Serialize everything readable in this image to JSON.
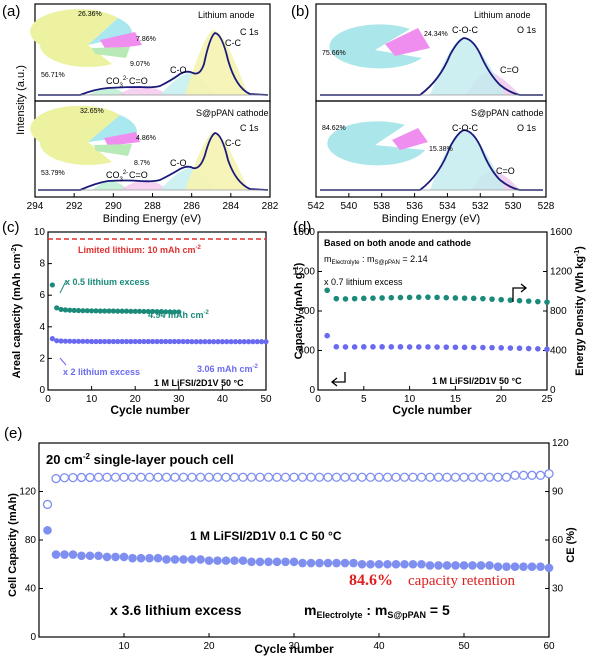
{
  "chart_data": [
    {
      "panel": "(a)",
      "type": "area",
      "xlabel": "Binding Energy (eV)",
      "ylabel": "Intensity (a.u.)",
      "xlim": [
        294,
        282
      ],
      "xticks": [
        294,
        292,
        290,
        288,
        286,
        284,
        282
      ],
      "subplots": [
        {
          "sample": "Lithium anode",
          "element": "C 1s",
          "peaks": [
            {
              "label": "C-C",
              "x": 284.8
            },
            {
              "label": "C-O",
              "x": 286.4
            },
            {
              "label": "C=O",
              "x": 288.6
            },
            {
              "label": "CO3 2-",
              "x": 289.9
            }
          ],
          "pie_values": [
            "56.71%",
            "26.36%",
            "7.86%",
            "9.07%"
          ]
        },
        {
          "sample": "S@pPAN cathode",
          "element": "C 1s",
          "peaks": [
            {
              "label": "C-C",
              "x": 284.8
            },
            {
              "label": "C-O",
              "x": 286.4
            },
            {
              "label": "C=O",
              "x": 288.6
            },
            {
              "label": "CO3 2-",
              "x": 289.9
            }
          ],
          "pie_values": [
            "53.79%",
            "32.65%",
            "4.86%",
            "8.7%"
          ]
        }
      ]
    },
    {
      "panel": "(b)",
      "type": "area",
      "xlabel": "Binding Energy (eV)",
      "xlim": [
        542,
        528
      ],
      "xticks": [
        542,
        540,
        538,
        536,
        534,
        532,
        530,
        528
      ],
      "subplots": [
        {
          "sample": "Lithium anode",
          "element": "O 1s",
          "peaks": [
            {
              "label": "C-O-C",
              "x": 533.1
            },
            {
              "label": "C=O",
              "x": 531.8
            }
          ],
          "pie_values": [
            "75.66%",
            "24.34%"
          ]
        },
        {
          "sample": "S@pPAN cathode",
          "element": "O 1s",
          "peaks": [
            {
              "label": "C-O-C",
              "x": 533.1
            },
            {
              "label": "C=O",
              "x": 531.8
            }
          ],
          "pie_values": [
            "84.62%",
            "15.38%"
          ]
        }
      ]
    },
    {
      "panel": "(c)",
      "type": "scatter",
      "xlabel": "Cycle number",
      "ylabel": "Areal capacity (mAh cm-2)",
      "xlim": [
        0,
        50
      ],
      "ylim": [
        0,
        10
      ],
      "xticks": [
        0,
        10,
        20,
        30,
        40,
        50
      ],
      "yticks": [
        0,
        2,
        4,
        6,
        8,
        10
      ],
      "reference_line": {
        "y": 10,
        "label": "Limited lithium: 10 mAh cm-2"
      },
      "series": [
        {
          "name": "x 0.5 lithium excess",
          "color": "#1a8a7a",
          "x": [
            1,
            2,
            3,
            4,
            5,
            6,
            7,
            8,
            9,
            10,
            11,
            12,
            13,
            14,
            15,
            16,
            17,
            18,
            19,
            20,
            21,
            22,
            23,
            24,
            25,
            26,
            27,
            28,
            29,
            30
          ],
          "y": [
            6.65,
            5.2,
            5.1,
            5.07,
            5.05,
            5.04,
            5.03,
            5.02,
            5.02,
            5.01,
            5.01,
            5.0,
            5.0,
            5.0,
            5.0,
            4.99,
            4.99,
            4.99,
            4.98,
            4.98,
            4.98,
            4.97,
            4.97,
            4.97,
            4.96,
            4.96,
            4.95,
            4.95,
            4.94,
            4.94
          ]
        },
        {
          "name": "x 2 lithium excess",
          "color": "#6a6af0",
          "x": [
            1,
            2,
            3,
            4,
            5,
            6,
            7,
            8,
            9,
            10,
            11,
            12,
            13,
            14,
            15,
            16,
            17,
            18,
            19,
            20,
            21,
            22,
            23,
            24,
            25,
            26,
            27,
            28,
            29,
            30,
            31,
            32,
            33,
            34,
            35,
            36,
            37,
            38,
            39,
            40,
            41,
            42,
            43,
            44,
            45,
            46,
            47,
            48,
            49,
            50
          ],
          "y": [
            3.25,
            3.12,
            3.1,
            3.09,
            3.09,
            3.08,
            3.08,
            3.08,
            3.08,
            3.07,
            3.07,
            3.07,
            3.07,
            3.07,
            3.07,
            3.07,
            3.07,
            3.07,
            3.07,
            3.07,
            3.07,
            3.07,
            3.07,
            3.07,
            3.07,
            3.07,
            3.07,
            3.07,
            3.07,
            3.07,
            3.07,
            3.07,
            3.06,
            3.06,
            3.06,
            3.06,
            3.06,
            3.06,
            3.06,
            3.06,
            3.06,
            3.06,
            3.06,
            3.06,
            3.06,
            3.06,
            3.06,
            3.06,
            3.06,
            3.06
          ]
        }
      ],
      "annotations": [
        "4.94 mAh cm-2",
        "3.06 mAh cm-2",
        "1 M LiFSI/2D1V   50 °C"
      ]
    },
    {
      "panel": "(d)",
      "type": "scatter",
      "xlabel": "Cycle number",
      "ylabel": "Capacity (mAh g-1)",
      "y2label": "Energy Density (Wh kg-1)",
      "xlim": [
        0,
        25
      ],
      "ylim": [
        0,
        1600
      ],
      "y2lim": [
        0,
        1600
      ],
      "xticks": [
        0,
        5,
        10,
        15,
        20,
        25
      ],
      "yticks": [
        0,
        400,
        800,
        1200,
        1600
      ],
      "series": [
        {
          "name": "Energy density",
          "axis": "right",
          "color": "#1a8a7a",
          "x": [
            1,
            2,
            3,
            4,
            5,
            6,
            7,
            8,
            9,
            10,
            11,
            12,
            13,
            14,
            15,
            16,
            17,
            18,
            19,
            20,
            21,
            22,
            23,
            24,
            25
          ],
          "y": [
            1010,
            925,
            922,
            925,
            928,
            930,
            932,
            935,
            936,
            938,
            940,
            940,
            938,
            935,
            932,
            930,
            928,
            925,
            920,
            915,
            910,
            905,
            900,
            895,
            890
          ]
        },
        {
          "name": "Capacity",
          "axis": "left",
          "color": "#6a6af0",
          "x": [
            1,
            2,
            3,
            4,
            5,
            6,
            7,
            8,
            9,
            10,
            11,
            12,
            13,
            14,
            15,
            16,
            17,
            18,
            19,
            20,
            21,
            22,
            23,
            24,
            25
          ],
          "y": [
            550,
            438,
            436,
            436,
            437,
            437,
            437,
            437,
            437,
            436,
            436,
            436,
            435,
            434,
            433,
            432,
            431,
            430,
            429,
            427,
            425,
            423,
            420,
            417,
            413
          ]
        }
      ],
      "annotations": [
        "Based on both anode and cathode",
        "x 0.7 lithium excess",
        "1 M LiFSI/2D1V   50 °C"
      ]
    },
    {
      "panel": "(e)",
      "type": "scatter",
      "xlabel": "Cycle number",
      "ylabel": "Cell Capacity (mAh)",
      "y2label": "CE (%)",
      "xlim": [
        0,
        60
      ],
      "ylim": [
        0,
        160
      ],
      "y2lim": [
        0,
        120
      ],
      "xticks": [
        10,
        20,
        30,
        40,
        50,
        60
      ],
      "yticks": [
        0,
        40,
        80,
        120
      ],
      "y2ticks": [
        30,
        60,
        90,
        120
      ],
      "series": [
        {
          "name": "CE",
          "axis": "right",
          "color": "#7f8ff0",
          "x": [
            1,
            2,
            3,
            4,
            5,
            6,
            7,
            8,
            9,
            10,
            11,
            12,
            13,
            14,
            15,
            16,
            17,
            18,
            19,
            20,
            21,
            22,
            23,
            24,
            25,
            26,
            27,
            28,
            29,
            30,
            31,
            32,
            33,
            34,
            35,
            36,
            37,
            38,
            39,
            40,
            41,
            42,
            43,
            44,
            45,
            46,
            47,
            48,
            49,
            50,
            51,
            52,
            53,
            54,
            55,
            56,
            57,
            58,
            59,
            60
          ],
          "y": [
            82,
            98,
            98.5,
            98.6,
            98.7,
            98.7,
            98.8,
            98.8,
            98.8,
            98.8,
            98.8,
            98.8,
            98.8,
            98.8,
            98.8,
            98.8,
            98.8,
            98.8,
            98.8,
            98.8,
            98.8,
            98.8,
            98.8,
            98.8,
            98.8,
            98.8,
            98.8,
            98.8,
            98.8,
            98.8,
            98.8,
            98.8,
            98.8,
            98.8,
            98.8,
            98.8,
            98.8,
            98.8,
            98.8,
            98.8,
            98.8,
            98.8,
            98.8,
            98.8,
            98.8,
            98.8,
            98.8,
            98.8,
            98.8,
            98.8,
            98.8,
            98.8,
            98.8,
            98.8,
            98.8,
            100,
            100,
            100,
            100,
            101
          ]
        },
        {
          "name": "Cell capacity",
          "axis": "left",
          "color": "#7f8ff0",
          "x": [
            1,
            2,
            3,
            4,
            5,
            6,
            7,
            8,
            9,
            10,
            11,
            12,
            13,
            14,
            15,
            16,
            17,
            18,
            19,
            20,
            21,
            22,
            23,
            24,
            25,
            26,
            27,
            28,
            29,
            30,
            31,
            32,
            33,
            34,
            35,
            36,
            37,
            38,
            39,
            40,
            41,
            42,
            43,
            44,
            45,
            46,
            47,
            48,
            49,
            50,
            51,
            52,
            53,
            54,
            55,
            56,
            57,
            58,
            59,
            60
          ],
          "y": [
            88,
            68,
            68,
            68,
            67,
            67,
            67,
            66,
            66,
            66,
            65,
            65,
            65,
            65,
            64,
            64,
            64,
            64,
            64,
            63,
            63,
            63,
            63,
            63,
            62,
            62,
            62,
            62,
            62,
            62,
            61,
            61,
            61,
            61,
            61,
            61,
            61,
            60,
            60,
            60,
            60,
            60,
            60,
            60,
            60,
            59,
            59,
            59,
            59,
            59,
            59,
            59,
            59,
            58,
            58,
            58,
            58,
            58,
            58,
            57
          ]
        }
      ],
      "annotations": [
        "20 cm-2 single-layer pouch cell",
        "1 M LiFSI/2D1V  0.1 C  50 °C",
        "84.6%",
        "capacity retention",
        "x 3.6 lithium excess",
        "mElectrolyte : mS@pPAN = 5"
      ]
    }
  ],
  "labels": {
    "a": "(a)",
    "b": "(b)",
    "c": "(c)",
    "d": "(d)",
    "e": "(e)",
    "binding_energy": "Binding Energy (eV)",
    "intensity": "Intensity (a.u.)",
    "cycle_number": "Cycle number",
    "lithium_anode": "Lithium anode",
    "cathode": "S@pPAN cathode",
    "c1s": "C 1s",
    "o1s": "O 1s",
    "cc": "C-C",
    "co": "C-O",
    "ceo": "C=O",
    "co3": "CO",
    "co3_sup": "2-",
    "co3_sub": "3",
    "coc": "C-O-C",
    "pa1": [
      "56.71%",
      "26.36%",
      "7.86%",
      "9.07%"
    ],
    "pa2": [
      "53.79%",
      "32.65%",
      "4.86%",
      "8.7%"
    ],
    "pb1": [
      "75.66%",
      "24.34%"
    ],
    "pb2": [
      "84.62%",
      "15.38%"
    ],
    "c_ylabel": "Areal capacity (mAh cm",
    "c_ylabel_sup": "-2",
    "c_ylabel_end": ")",
    "limited": "Limited lithium: 10 mAh cm",
    "limited_sup": "-2",
    "x05": "x 0.5 lithium excess",
    "v494": "4.94 mAh cm",
    "v494_sup": "-2",
    "x2": "x 2 lithium excess",
    "v306": "3.06 mAh cm",
    "v306_sup": "-2",
    "c_cond": "1 M LiFSI/2D1V   50 °C",
    "d_ylabel": "Capacity (mAh g",
    "d_ylabel_sup": "-1",
    "d_ylabel_end": ")",
    "d_y2label": "Energy Density (Wh kg",
    "d_y2label_sup": "-1",
    "d_y2label_end": ")",
    "d_basis": "Based on both anode and cathode",
    "d_ratio_m": "m",
    "d_ratio_sub1": "Electrolyte",
    "d_ratio_mid": " : m",
    "d_ratio_sub2": "S@pPAN",
    "d_ratio_end": " = 2.14",
    "d_excess": "x 0.7 lithium excess",
    "d_cond": "1 M LiFSI/2D1V   50 °C",
    "e_title": "20 cm",
    "e_title_sup": "-2",
    "e_title_end": " single-layer pouch cell",
    "e_cond": "1 M LiFSI/2D1V  0.1 C  50 °C",
    "e_pct": "84.6%",
    "e_ret": "capacity retention",
    "e_excess": "x 3.6 lithium excess",
    "e_m": "m",
    "e_sub1": "Electrolyte",
    "e_mid": " : m",
    "e_sub2": "S@pPAN",
    "e_end": " = 5",
    "e_ylabel": "Cell Capacity (mAh)",
    "e_y2label": "CE (%)"
  }
}
